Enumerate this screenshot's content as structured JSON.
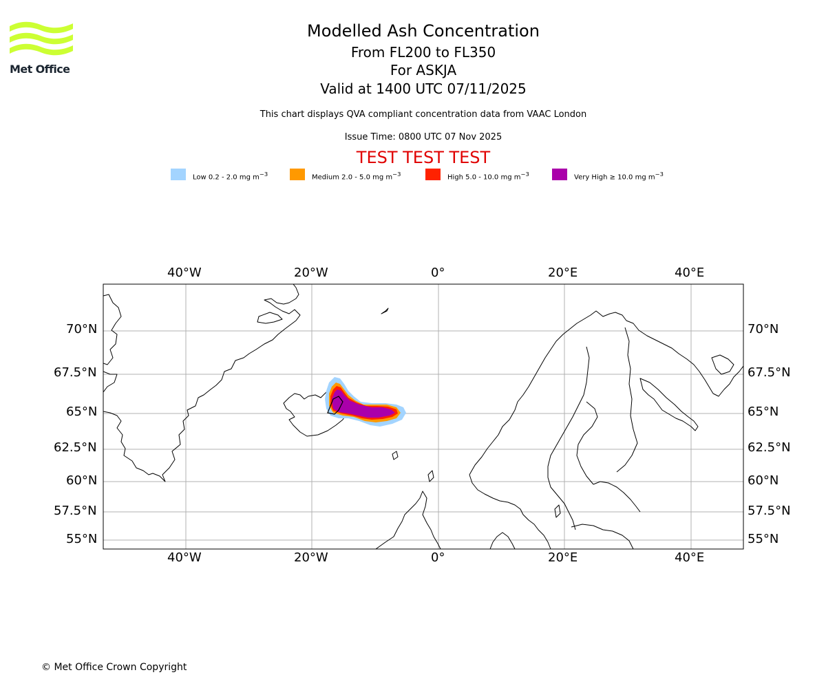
{
  "logo": {
    "text": "Met Office",
    "color": "#ccff33"
  },
  "header": {
    "title": "Modelled Ash Concentration",
    "flight_levels": "From FL200 to FL350",
    "volcano": "For ASKJA",
    "valid_time": "Valid at 1400 UTC 07/11/2025",
    "description": "This chart displays QVA compliant concentration data from VAAC London",
    "issue_time": "Issue Time: 0800 UTC 07 Nov 2025",
    "test_banner": "TEST TEST TEST"
  },
  "legend": [
    {
      "label": "Low 0.2 - 2.0 mg m",
      "unit_exp": "−3",
      "color": "#a3d4ff"
    },
    {
      "label": "Medium 2.0 - 5.0 mg m",
      "unit_exp": "−3",
      "color": "#ff9900"
    },
    {
      "label": "High 5.0 - 10.0 mg m",
      "unit_exp": "−3",
      "color": "#ff2200"
    },
    {
      "label": "Very High  ≥  10.0 mg m",
      "unit_exp": "−3",
      "color": "#aa00aa"
    }
  ],
  "map": {
    "lon_ticks": [
      "40°W",
      "20°W",
      "0°",
      "20°E",
      "40°E"
    ],
    "lat_ticks": [
      "70°N",
      "67.5°N",
      "65°N",
      "62.5°N",
      "60°N",
      "57.5°N",
      "55°N"
    ],
    "gridlines": true,
    "colors": {
      "grid": "#b0b0b0",
      "coast": "#000000",
      "frame": "#000000"
    }
  },
  "footer": {
    "copyright": "© Met Office Crown Copyright"
  }
}
